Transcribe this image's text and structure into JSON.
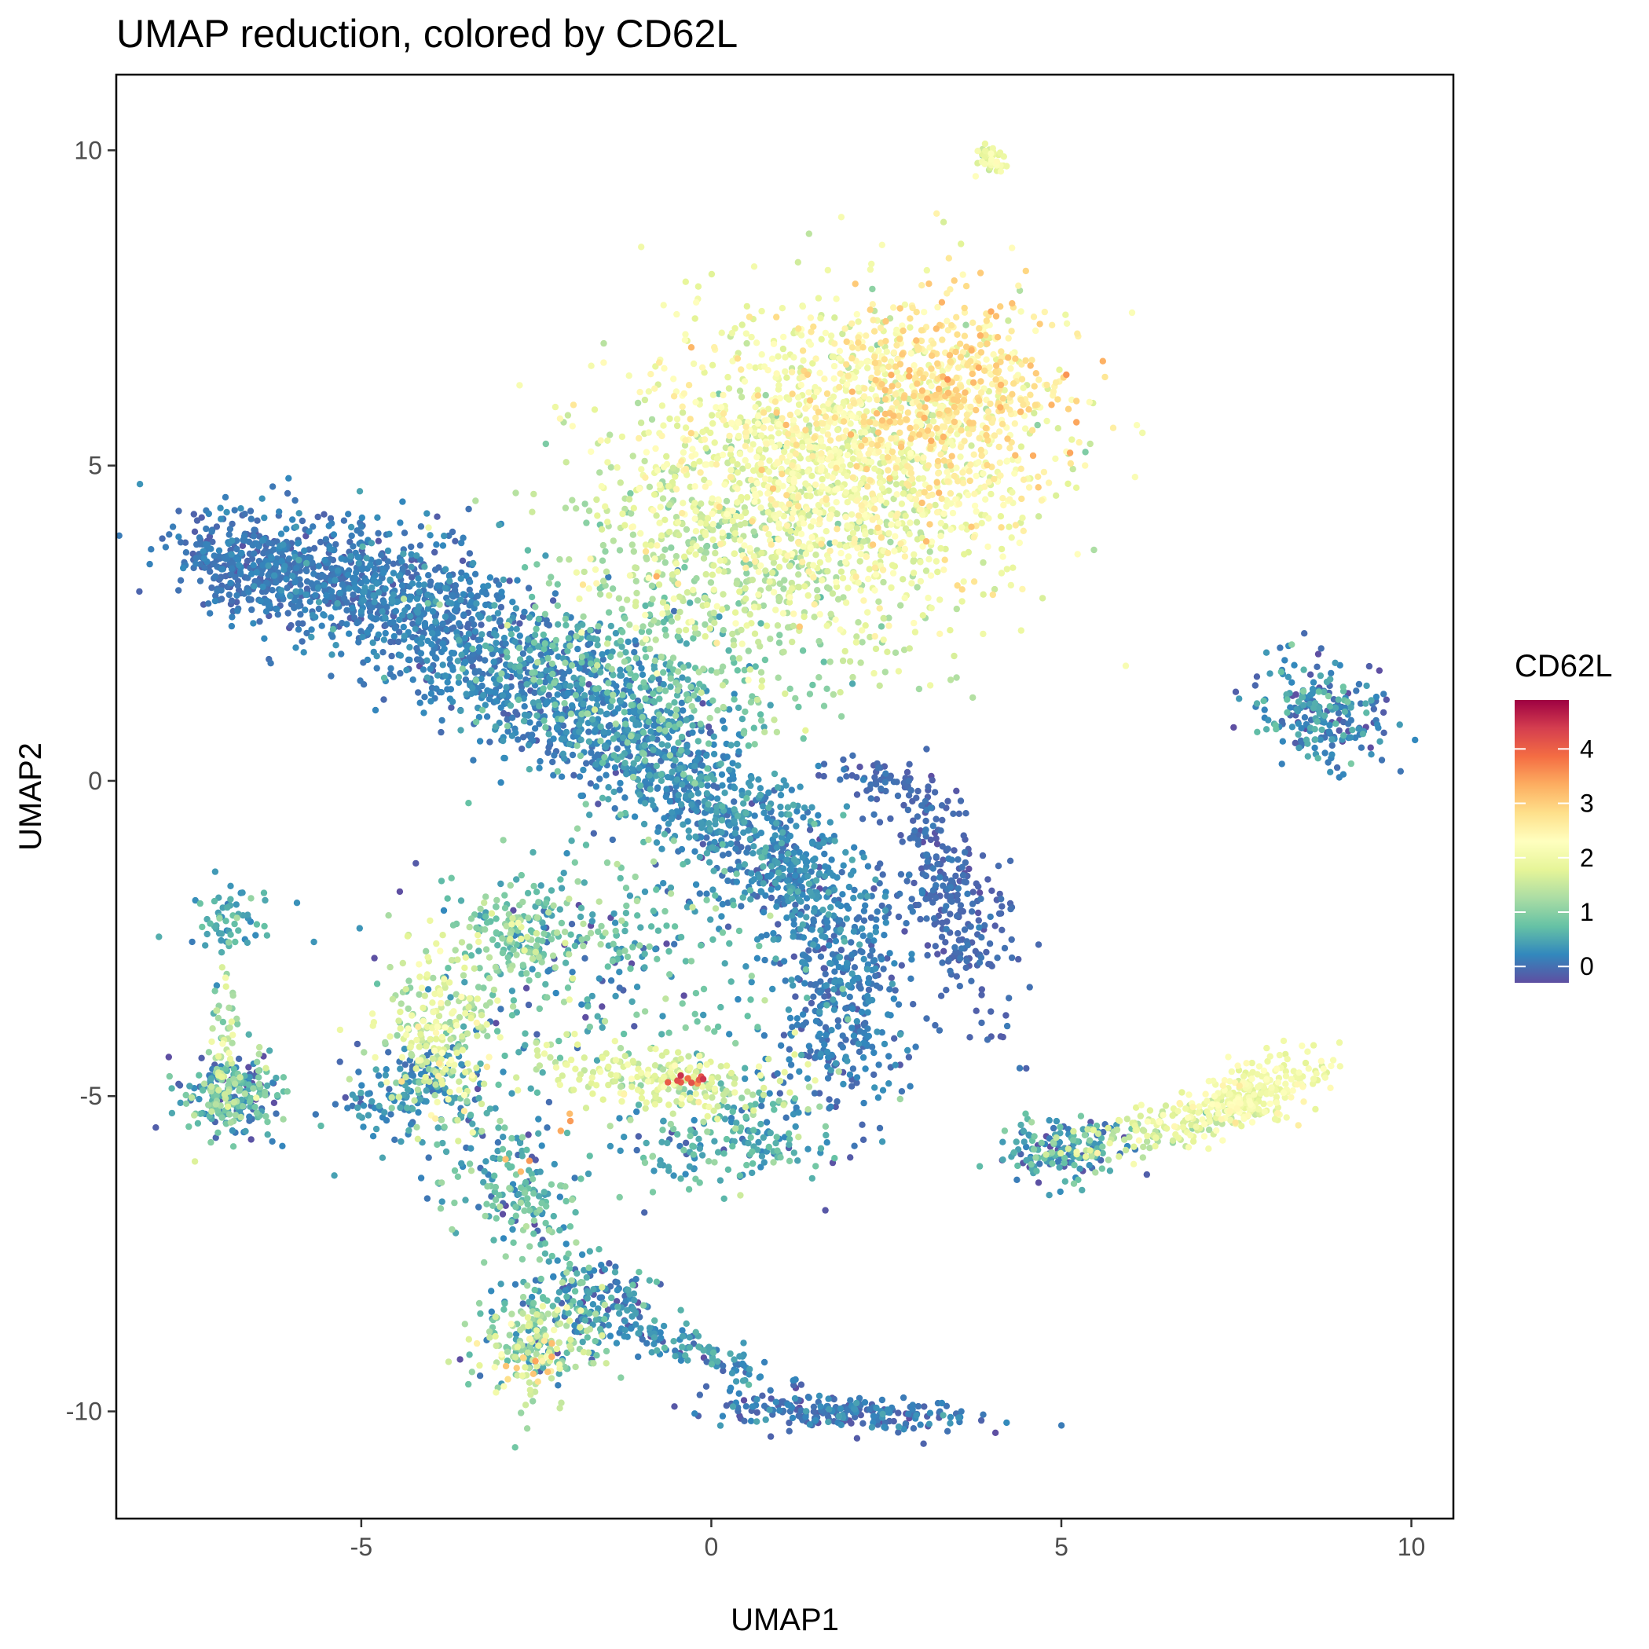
{
  "chart_data": {
    "type": "scatter",
    "title": "UMAP reduction, colored by CD62L",
    "xlabel": "UMAP1",
    "ylabel": "UMAP2",
    "xlim": [
      -8.5,
      10.6
    ],
    "ylim": [
      -11.7,
      11.2
    ],
    "x_ticks": [
      -5,
      0,
      5,
      10
    ],
    "x_tick_labels": [
      "-5",
      "0",
      "5",
      "10"
    ],
    "y_ticks": [
      -10,
      -5,
      0,
      5,
      10
    ],
    "y_tick_labels": [
      "-10",
      "-5",
      "0",
      "5",
      "10"
    ],
    "grid": false,
    "color_variable": "CD62L",
    "color_scale": {
      "title": "CD62L",
      "min": -0.3,
      "max": 4.9,
      "ticks": [
        0,
        1,
        2,
        3,
        4
      ],
      "tick_labels": [
        "0",
        "1",
        "2",
        "3",
        "4"
      ],
      "palette": [
        "#5E4FA2",
        "#3288BD",
        "#66C2A5",
        "#ABDDA4",
        "#E6F598",
        "#FFFFBF",
        "#FEE08B",
        "#FDAE61",
        "#F46D43",
        "#D53E4F",
        "#9E0142"
      ],
      "legend_position": "right"
    },
    "clusters": [
      {
        "cx": 1.8,
        "cy": 5.1,
        "sx": 1.5,
        "sy": 1.25,
        "n": 1700,
        "cval": 2.05,
        "cgrad": 0.35,
        "rot": 0.15
      },
      {
        "cx": 3.4,
        "cy": 6.1,
        "sx": 0.85,
        "sy": 0.7,
        "n": 500,
        "cval": 2.7,
        "cgrad": 0.3,
        "rot": 0.3
      },
      {
        "cx": 0.5,
        "cy": 3.4,
        "sx": 1.3,
        "sy": 1.0,
        "n": 500,
        "cval": 1.35,
        "cgrad": 0.25,
        "rot": -0.2
      },
      {
        "cx": -1.2,
        "cy": 1.6,
        "sx": 1.1,
        "sy": 0.8,
        "n": 350,
        "cval": 0.75,
        "cgrad": 0.25,
        "rot": -0.5
      },
      {
        "cx": -6.6,
        "cy": 3.4,
        "sx": 0.6,
        "sy": 0.35,
        "n": 300,
        "cval": 0.05,
        "cgrad": 0.1,
        "rot": -0.2
      },
      {
        "cx": -5.1,
        "cy": 3.1,
        "sx": 1.0,
        "sy": 0.5,
        "n": 600,
        "cval": 0.1,
        "cgrad": 0.15,
        "rot": -0.35
      },
      {
        "cx": -3.2,
        "cy": 2.0,
        "sx": 1.1,
        "sy": 0.6,
        "n": 550,
        "cval": 0.15,
        "cgrad": 0.15,
        "rot": -0.5
      },
      {
        "cx": -1.4,
        "cy": 0.9,
        "sx": 0.9,
        "sy": 0.5,
        "n": 400,
        "cval": 0.2,
        "cgrad": 0.15,
        "rot": -0.55
      },
      {
        "cx": 0.0,
        "cy": -0.3,
        "sx": 0.9,
        "sy": 0.45,
        "n": 400,
        "cval": 0.25,
        "cgrad": 0.2,
        "rot": -0.6
      },
      {
        "cx": 1.2,
        "cy": -1.6,
        "sx": 0.7,
        "sy": 0.45,
        "n": 300,
        "cval": 0.2,
        "cgrad": 0.2,
        "rot": -0.7
      },
      {
        "cx": 1.9,
        "cy": -3.5,
        "sx": 0.5,
        "sy": 0.85,
        "n": 350,
        "cval": 0.1,
        "cgrad": 0.15,
        "rot": 0.0
      },
      {
        "cx": 3.4,
        "cy": -1.8,
        "sx": 0.35,
        "sy": 0.95,
        "n": 280,
        "cval": -0.05,
        "cgrad": 0.1,
        "rot": 0.35
      },
      {
        "cx": 2.5,
        "cy": 0.0,
        "sx": 0.5,
        "sy": 0.15,
        "n": 60,
        "cval": -0.05,
        "cgrad": 0.1,
        "rot": -0.3
      },
      {
        "cx": -1.5,
        "cy": -2.6,
        "sx": 1.4,
        "sy": 0.9,
        "n": 350,
        "cval": 0.65,
        "cgrad": 0.45,
        "rot": 0.0
      },
      {
        "cx": -0.8,
        "cy": -4.7,
        "sx": 0.9,
        "sy": 0.25,
        "n": 220,
        "cval": 1.7,
        "cgrad": 0.3,
        "rot": -0.1
      },
      {
        "cx": 0.3,
        "cy": -5.7,
        "sx": 0.8,
        "sy": 0.45,
        "n": 200,
        "cval": 0.55,
        "cgrad": 0.35,
        "rot": 0.0
      },
      {
        "cx": -3.9,
        "cy": -4.0,
        "sx": 0.4,
        "sy": 0.7,
        "n": 250,
        "cval": 1.6,
        "cgrad": 0.4,
        "rot": 0.0
      },
      {
        "cx": -4.3,
        "cy": -4.9,
        "sx": 0.6,
        "sy": 0.3,
        "n": 150,
        "cval": 0.25,
        "cgrad": 0.2,
        "rot": 0.4
      },
      {
        "cx": -2.8,
        "cy": -2.5,
        "sx": 0.4,
        "sy": 0.35,
        "n": 120,
        "cval": 1.0,
        "cgrad": 0.4,
        "rot": 0.0
      },
      {
        "cx": -3.2,
        "cy": -6.0,
        "sx": 0.5,
        "sy": 0.6,
        "n": 120,
        "cval": 0.6,
        "cgrad": 0.45,
        "rot": 0.5
      },
      {
        "cx": -2.4,
        "cy": -6.8,
        "sx": 0.3,
        "sy": 0.5,
        "n": 100,
        "cval": 0.6,
        "cgrad": 0.4,
        "rot": 0.2
      },
      {
        "cx": -6.85,
        "cy": -5.0,
        "sx": 0.35,
        "sy": 0.3,
        "n": 260,
        "cval": 0.55,
        "cgrad": 0.55,
        "rot": 0.0
      },
      {
        "cx": -7.0,
        "cy": -4.2,
        "sx": 0.15,
        "sy": 0.5,
        "n": 50,
        "cval": 1.4,
        "cgrad": 0.4,
        "rot": 0.0
      },
      {
        "cx": -6.95,
        "cy": -2.2,
        "sx": 0.25,
        "sy": 0.3,
        "n": 60,
        "cval": 0.5,
        "cgrad": 0.3,
        "rot": -0.8
      },
      {
        "cx": -2.5,
        "cy": -8.9,
        "sx": 0.45,
        "sy": 0.45,
        "n": 230,
        "cval": 1.05,
        "cgrad": 0.6,
        "rot": 0.0
      },
      {
        "cx": -1.6,
        "cy": -8.3,
        "sx": 0.5,
        "sy": 0.35,
        "n": 160,
        "cval": 0.25,
        "cgrad": 0.3,
        "rot": -0.3
      },
      {
        "cx": -0.3,
        "cy": -9.0,
        "sx": 0.7,
        "sy": 0.15,
        "n": 110,
        "cval": 0.3,
        "cgrad": 0.25,
        "rot": -0.4
      },
      {
        "cx": 1.8,
        "cy": -10.0,
        "sx": 0.95,
        "sy": 0.15,
        "n": 240,
        "cval": 0.05,
        "cgrad": 0.2,
        "rot": -0.05
      },
      {
        "cx": 8.7,
        "cy": 1.1,
        "sx": 0.5,
        "sy": 0.4,
        "n": 230,
        "cval": 0.25,
        "cgrad": 0.3,
        "rot": -0.3
      },
      {
        "cx": 5.0,
        "cy": -5.8,
        "sx": 0.45,
        "sy": 0.25,
        "n": 170,
        "cval": 0.35,
        "cgrad": 0.4,
        "rot": 0.2
      },
      {
        "cx": 6.5,
        "cy": -5.5,
        "sx": 0.7,
        "sy": 0.15,
        "n": 120,
        "cval": 1.6,
        "cgrad": 0.3,
        "rot": 0.25
      },
      {
        "cx": 7.7,
        "cy": -5.0,
        "sx": 0.6,
        "sy": 0.25,
        "n": 260,
        "cval": 2.05,
        "cgrad": 0.2,
        "rot": 0.35
      },
      {
        "cx": 4.0,
        "cy": 9.85,
        "sx": 0.12,
        "sy": 0.12,
        "n": 40,
        "cval": 1.9,
        "cgrad": 0.25,
        "rot": 0.5
      },
      {
        "cx": -0.25,
        "cy": -4.75,
        "sx": 0.15,
        "sy": 0.04,
        "n": 10,
        "cval": 4.0,
        "cgrad": 0.2,
        "rot": 0.0
      },
      {
        "cx": -2.1,
        "cy": -5.4,
        "sx": 0.1,
        "sy": 0.1,
        "n": 3,
        "cval": 3.3,
        "cgrad": 0.2,
        "rot": 0.0
      },
      {
        "cx": -2.7,
        "cy": -6.1,
        "sx": 0.1,
        "sy": 0.1,
        "n": 3,
        "cval": 3.2,
        "cgrad": 0.2,
        "rot": 0.0
      },
      {
        "cx": -2.5,
        "cy": -9.3,
        "sx": 0.25,
        "sy": 0.15,
        "n": 12,
        "cval": 2.9,
        "cgrad": 0.3,
        "rot": 0.0
      }
    ]
  }
}
